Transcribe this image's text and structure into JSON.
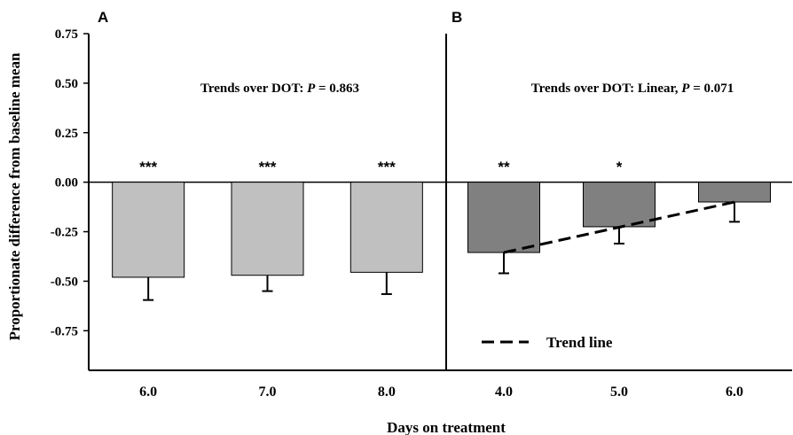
{
  "chart_data": {
    "type": "bar",
    "ylabel": "Proportionate difference from baseline mean",
    "xlabel": "Days on treatment",
    "ylim": [
      -0.95,
      0.75
    ],
    "yticks": [
      "0.75",
      "0.50",
      "0.25",
      "0.00",
      "-0.25",
      "-0.50",
      "-0.75"
    ],
    "y_tick_values": [
      0.75,
      0.5,
      0.25,
      0,
      -0.25,
      -0.5,
      -0.75
    ],
    "grid": false,
    "panels": [
      {
        "label": "A",
        "annotation": {
          "prefix": "Trends over DOT:  ",
          "p_italic": "P",
          "suffix": " = 0.863"
        },
        "categories": [
          "6.0",
          "7.0",
          "8.0"
        ],
        "values": [
          -0.48,
          -0.47,
          -0.455
        ],
        "error": [
          0.115,
          0.08,
          0.11
        ],
        "significance": [
          "***",
          "***",
          "***"
        ],
        "bar_color": "#c0c0c0"
      },
      {
        "label": "B",
        "annotation": {
          "prefix": "Trends over DOT:  Linear, ",
          "p_italic": "P",
          "suffix": " = 0.071"
        },
        "categories": [
          "4.0",
          "5.0",
          "6.0"
        ],
        "values": [
          -0.355,
          -0.225,
          -0.1
        ],
        "error": [
          0.105,
          0.085,
          0.1
        ],
        "significance": [
          "**",
          "*",
          ""
        ],
        "bar_color": "#808080",
        "trend_line": {
          "x_start": "4.0",
          "y_start": -0.355,
          "x_end": "6.0",
          "y_end": -0.1
        },
        "legend": {
          "trend_label": "Trend line",
          "position": "bottom-center"
        }
      }
    ]
  }
}
